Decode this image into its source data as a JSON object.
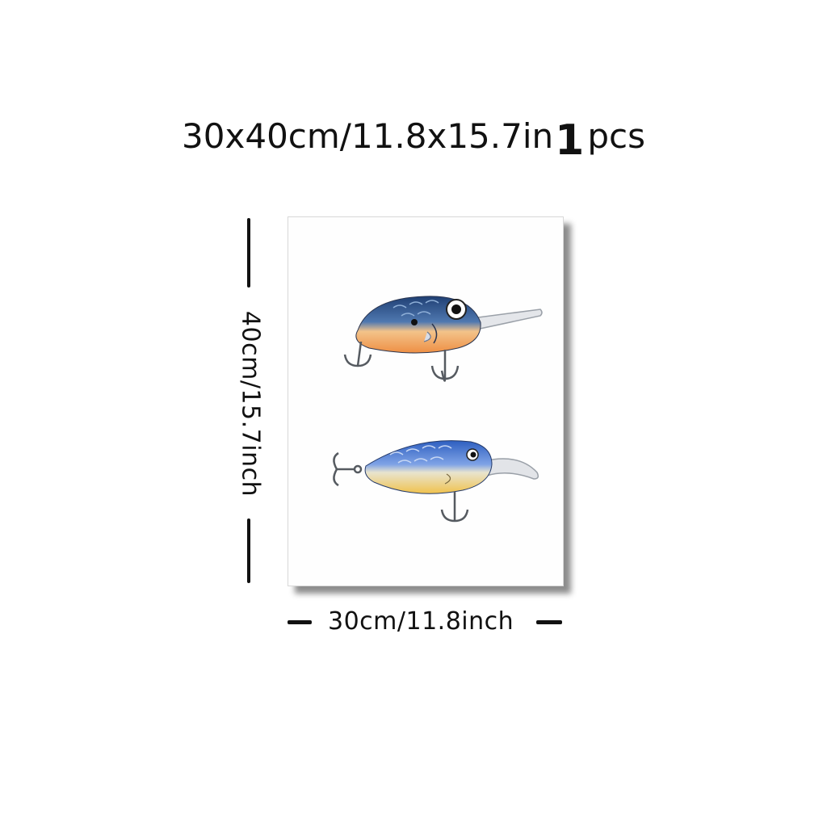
{
  "headline": {
    "size": "30x40cm/11.8x15.7in",
    "quantity": "1",
    "unit": "pcs"
  },
  "dimensions": {
    "height_label": "40cm/15.7inch",
    "width_label": "30cm/11.8inch"
  },
  "artwork": {
    "subject": "two fishing lures",
    "colors": {
      "top_lure_back": "#2b4f86",
      "top_lure_belly": "#f0a25e",
      "bottom_lure_back": "#3a6fd0",
      "bottom_lure_belly": "#f2cf6a",
      "hook": "#555a60"
    }
  }
}
